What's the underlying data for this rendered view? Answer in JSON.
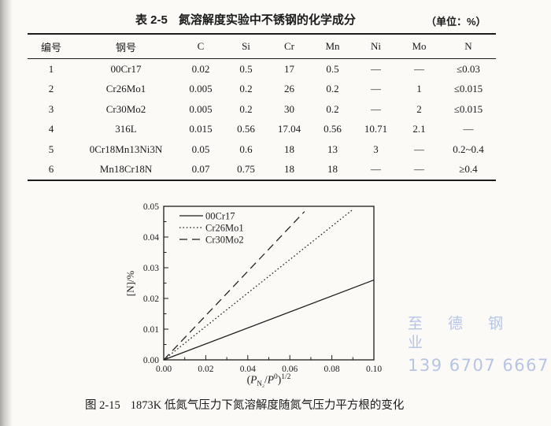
{
  "page": {
    "watermark_line1": "至 德 钢 业",
    "watermark_line2": "139 6707 6667",
    "watermark_color": "#a9bbe3"
  },
  "table": {
    "tag": "表 2-5",
    "title": "氮溶解度实验中不锈钢的化学成分",
    "unit_note": "（单位：%）",
    "headers": [
      "编号",
      "钢号",
      "C",
      "Si",
      "Cr",
      "Mn",
      "Ni",
      "Mo",
      "N"
    ],
    "rows": [
      [
        "1",
        "00Cr17",
        "0.02",
        "0.5",
        "17",
        "0.5",
        "—",
        "—",
        "≤0.03"
      ],
      [
        "2",
        "Cr26Mo1",
        "0.005",
        "0.2",
        "26",
        "0.2",
        "—",
        "1",
        "≤0.015"
      ],
      [
        "3",
        "Cr30Mo2",
        "0.005",
        "0.2",
        "30",
        "0.2",
        "—",
        "2",
        "≤0.015"
      ],
      [
        "4",
        "316L",
        "0.015",
        "0.56",
        "17.04",
        "0.56",
        "10.71",
        "2.1",
        "—"
      ],
      [
        "5",
        "0Cr18Mn13Ni3N",
        "0.05",
        "0.6",
        "18",
        "13",
        "3",
        "—",
        "0.2~0.4"
      ],
      [
        "6",
        "Mn18Cr18N",
        "0.07",
        "0.75",
        "18",
        "18",
        "—",
        "—",
        "≥0.4"
      ]
    ]
  },
  "figure": {
    "caption_tag": "图 2-15",
    "caption_text": "1873K 低氮气压力下氮溶解度随氮气压力平方根的变化"
  },
  "chart_data": {
    "type": "line",
    "title": "",
    "xlabel": "(P_N₂/P⁰)^1/2",
    "xlabel_parts": {
      "lparen": "(",
      "p1": "P",
      "sub1": "N₂",
      "slash": "/",
      "p2": "P",
      "sup0": "0",
      "rparen": ")",
      "exp": "1/2"
    },
    "ylabel": "[N]/%",
    "xlim": [
      0,
      0.1
    ],
    "ylim": [
      0,
      0.05
    ],
    "grid": false,
    "legend_position": "top-left",
    "x_ticks": {
      "major": [
        0,
        0.02,
        0.04,
        0.06,
        0.08,
        0.1
      ],
      "minor_step": 0.01,
      "labels": [
        "0.00",
        "0.02",
        "0.04",
        "0.06",
        "0.08",
        "0.10"
      ]
    },
    "y_ticks": {
      "major": [
        0,
        0.01,
        0.02,
        0.03,
        0.04,
        0.05
      ],
      "minor_step": 0.005,
      "labels": [
        "0.00",
        "0.01",
        "0.02",
        "0.03",
        "0.04",
        "0.05"
      ]
    },
    "series": [
      {
        "name": "00Cr17",
        "line_style": "solid",
        "points": [
          [
            0,
            0
          ],
          [
            0.1,
            0.026
          ]
        ]
      },
      {
        "name": "Cr26Mo1",
        "line_style": "dotted",
        "points": [
          [
            0,
            0
          ],
          [
            0.0895,
            0.0487
          ]
        ]
      },
      {
        "name": "Cr30Mo2",
        "line_style": "dashed",
        "points": [
          [
            0,
            0
          ],
          [
            0.067,
            0.0483
          ]
        ]
      }
    ],
    "line_color": "#1c1c1c"
  }
}
